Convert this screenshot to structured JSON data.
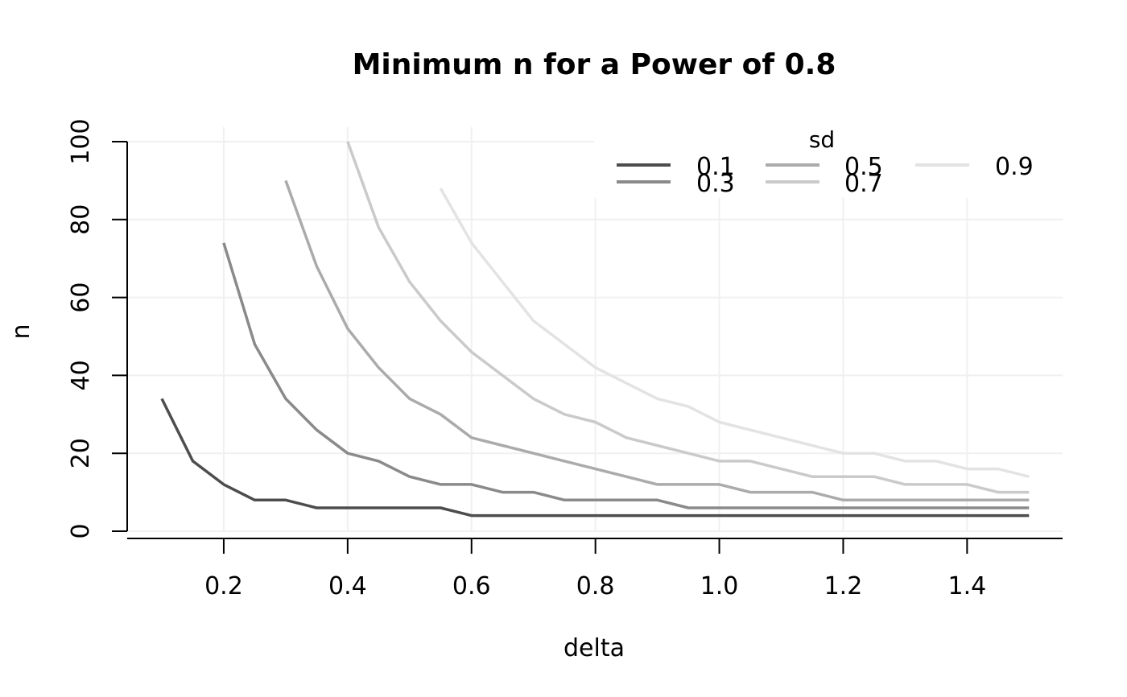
{
  "chart_data": {
    "type": "line",
    "title": "Minimum n for a Power of 0.8",
    "xlabel": "delta",
    "ylabel": "n",
    "xlim": [
      0.05,
      1.55
    ],
    "ylim": [
      0,
      100
    ],
    "grid": true,
    "x_ticks": [
      {
        "value": 0.2,
        "label": "0.2"
      },
      {
        "value": 0.4,
        "label": "0.4"
      },
      {
        "value": 0.6,
        "label": "0.6"
      },
      {
        "value": 0.8,
        "label": "0.8"
      },
      {
        "value": 1.0,
        "label": "1.0"
      },
      {
        "value": 1.2,
        "label": "1.2"
      },
      {
        "value": 1.4,
        "label": "1.4"
      }
    ],
    "y_ticks": [
      {
        "value": 0,
        "label": "0"
      },
      {
        "value": 20,
        "label": "20"
      },
      {
        "value": 40,
        "label": "40"
      },
      {
        "value": 60,
        "label": "60"
      },
      {
        "value": 80,
        "label": "80"
      },
      {
        "value": 100,
        "label": "100"
      }
    ],
    "legend": {
      "title": "sd",
      "placement": "top-right"
    },
    "series": [
      {
        "name": "0.1",
        "color": "#4d4d4d",
        "x": [
          0.1,
          0.15,
          0.2,
          0.25,
          0.3,
          0.35,
          0.4,
          0.45,
          0.5,
          0.55,
          0.6,
          0.65,
          0.7,
          0.75,
          0.8,
          0.85,
          0.9,
          0.95,
          1.0,
          1.05,
          1.1,
          1.15,
          1.2,
          1.25,
          1.3,
          1.35,
          1.4,
          1.45,
          1.5
        ],
        "values": [
          34,
          18,
          12,
          8,
          8,
          6,
          6,
          6,
          6,
          6,
          4,
          4,
          4,
          4,
          4,
          4,
          4,
          4,
          4,
          4,
          4,
          4,
          4,
          4,
          4,
          4,
          4,
          4,
          4
        ]
      },
      {
        "name": "0.3",
        "color": "#8a8a8a",
        "x": [
          0.2,
          0.25,
          0.3,
          0.35,
          0.4,
          0.45,
          0.5,
          0.55,
          0.6,
          0.65,
          0.7,
          0.75,
          0.8,
          0.85,
          0.9,
          0.95,
          1.0,
          1.05,
          1.1,
          1.15,
          1.2,
          1.25,
          1.3,
          1.35,
          1.4,
          1.45,
          1.5
        ],
        "values": [
          74,
          48,
          34,
          26,
          20,
          18,
          14,
          12,
          12,
          10,
          10,
          8,
          8,
          8,
          8,
          6,
          6,
          6,
          6,
          6,
          6,
          6,
          6,
          6,
          6,
          6,
          6
        ]
      },
      {
        "name": "0.5",
        "color": "#ababab",
        "x": [
          0.3,
          0.35,
          0.4,
          0.45,
          0.5,
          0.55,
          0.6,
          0.65,
          0.7,
          0.75,
          0.8,
          0.85,
          0.9,
          0.95,
          1.0,
          1.05,
          1.1,
          1.15,
          1.2,
          1.25,
          1.3,
          1.35,
          1.4,
          1.45,
          1.5
        ],
        "values": [
          90,
          68,
          52,
          42,
          34,
          30,
          24,
          22,
          20,
          18,
          16,
          14,
          12,
          12,
          12,
          10,
          10,
          10,
          8,
          8,
          8,
          8,
          8,
          8,
          8
        ]
      },
      {
        "name": "0.7",
        "color": "#cacaca",
        "x": [
          0.4,
          0.45,
          0.5,
          0.55,
          0.6,
          0.65,
          0.7,
          0.75,
          0.8,
          0.85,
          0.9,
          0.95,
          1.0,
          1.05,
          1.1,
          1.15,
          1.2,
          1.25,
          1.3,
          1.35,
          1.4,
          1.45,
          1.5
        ],
        "values": [
          100,
          78,
          64,
          54,
          46,
          40,
          34,
          30,
          28,
          24,
          22,
          20,
          18,
          18,
          16,
          14,
          14,
          14,
          12,
          12,
          12,
          10,
          10
        ]
      },
      {
        "name": "0.9",
        "color": "#e3e3e3",
        "x": [
          0.55,
          0.6,
          0.65,
          0.7,
          0.75,
          0.8,
          0.85,
          0.9,
          0.95,
          1.0,
          1.05,
          1.1,
          1.15,
          1.2,
          1.25,
          1.3,
          1.35,
          1.4,
          1.45,
          1.5
        ],
        "values": [
          88,
          74,
          64,
          54,
          48,
          42,
          38,
          34,
          32,
          28,
          26,
          24,
          22,
          20,
          20,
          18,
          18,
          16,
          16,
          14
        ]
      }
    ]
  }
}
